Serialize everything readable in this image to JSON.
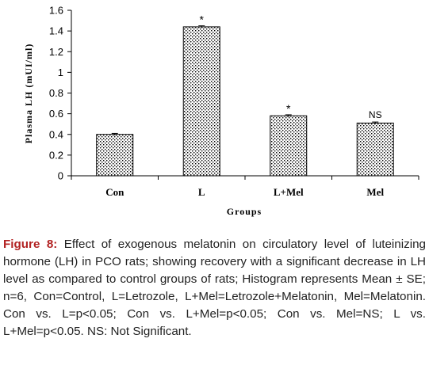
{
  "chart_data": {
    "type": "bar",
    "categories": [
      "Con",
      "L",
      "L+Mel",
      "Mel"
    ],
    "values": [
      0.4,
      1.44,
      0.58,
      0.51
    ],
    "errors": [
      0.01,
      0.01,
      0.01,
      0.01
    ],
    "annotations": [
      "",
      "*",
      "*",
      "NS"
    ],
    "title": "",
    "xlabel": "Groups",
    "ylabel": "Plasma LH (mUI/ml)",
    "ylim": [
      0,
      1.6
    ],
    "yticks": [
      0,
      0.2,
      0.4,
      0.6,
      0.8,
      1,
      1.2,
      1.4,
      1.6
    ],
    "ytick_labels": [
      "0",
      "0.2",
      "0.4",
      "0.6",
      "0.8",
      "1",
      "1.2",
      "1.4",
      "1.6"
    ],
    "bar_pattern": "dotted",
    "grid": false,
    "legend": "none"
  },
  "caption": {
    "label": "Figure 8:",
    "text": " Effect of exogenous melatonin on circulatory level of luteinizing hormone (LH) in PCO rats; showing recovery with a significant decrease in LH level as compared to control groups of rats; Histogram represents Mean ± SE; n=6, Con=Control, L=Letrozole, L+Mel=Letrozole+Melatonin, Mel=Melatonin. Con vs. L=p<0.05; Con vs. L+Mel=p<0.05; Con vs. Mel=NS; L vs. L+Mel=p<0.05. NS: Not Significant."
  },
  "colors": {
    "caption_label": "#b22222",
    "bar_fill": "#ffffff",
    "bar_dots": "#000000"
  }
}
